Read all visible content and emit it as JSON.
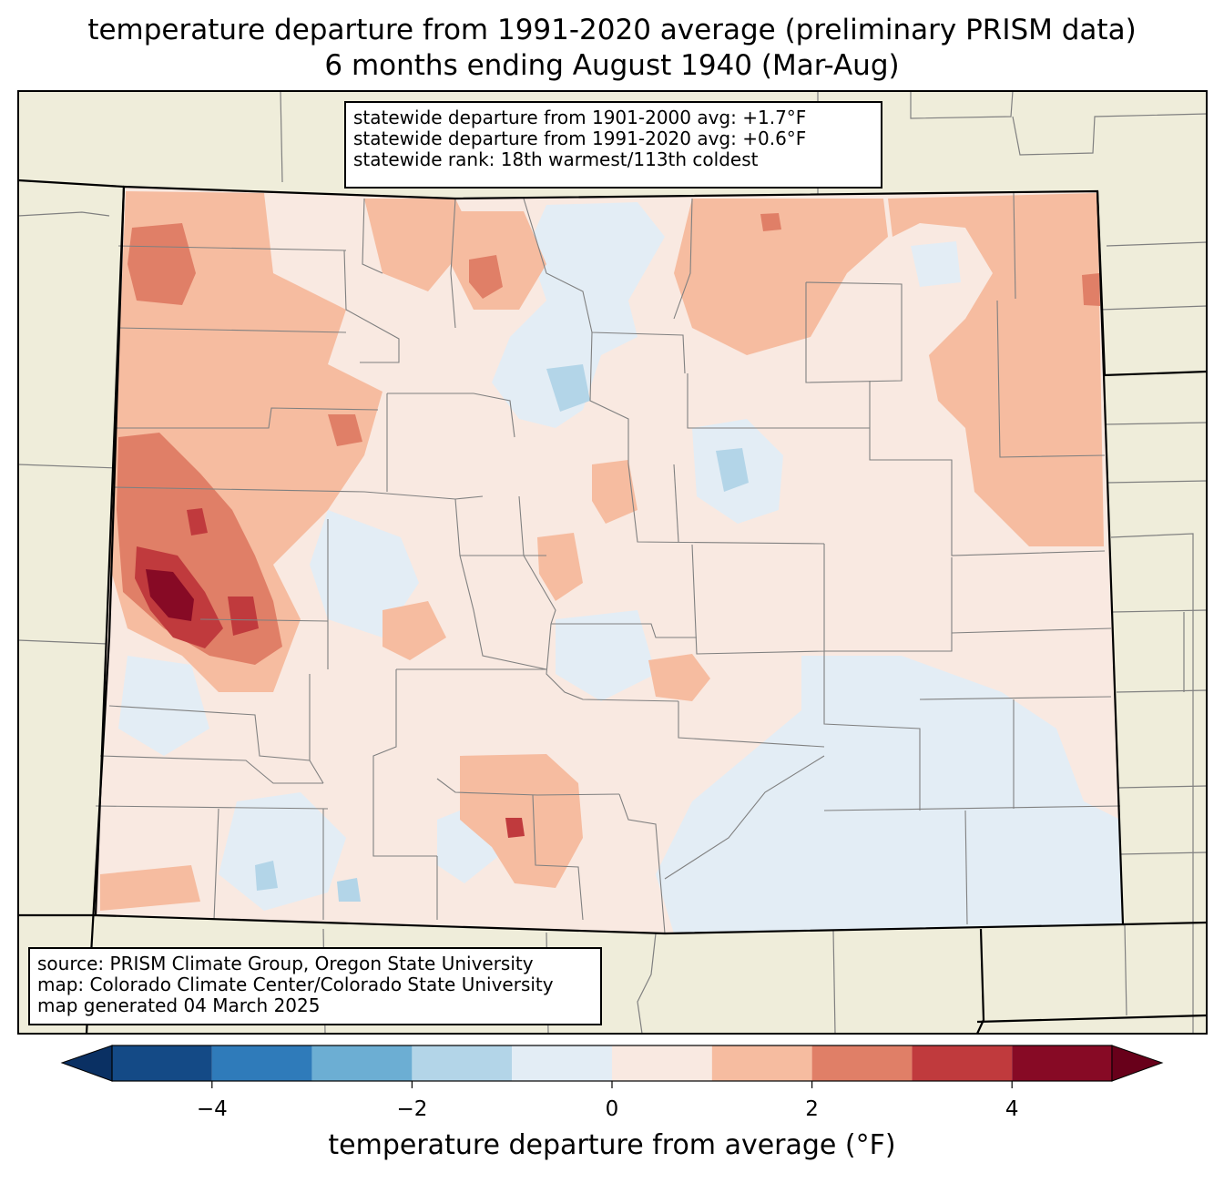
{
  "title": {
    "line1": "temperature departure from 1991-2020 average (preliminary PRISM data)",
    "line2": "6 months ending August 1940 (Mar-Aug)"
  },
  "stats": {
    "line1": "statewide departure from 1901-2000 avg: +1.7°F",
    "line2": "statewide departure from 1991-2020 avg: +0.6°F",
    "line3": "statewide rank: 18th warmest/113th coldest"
  },
  "credits": {
    "line1": "source: PRISM Climate Group, Oregon State University",
    "line2": "map: Colorado Climate Center/Colorado State University",
    "line3": "map generated 04 March 2025"
  },
  "colorbar": {
    "label": "temperature departure from average (°F)",
    "ticks": [
      "−4",
      "−2",
      "0",
      "2",
      "4"
    ],
    "bins": [
      {
        "from": -5,
        "to": -4,
        "color": "#144a86"
      },
      {
        "from": -4,
        "to": -3,
        "color": "#2f7bba"
      },
      {
        "from": -3,
        "to": -2,
        "color": "#6caed3"
      },
      {
        "from": -2,
        "to": -1,
        "color": "#b3d5e8"
      },
      {
        "from": -1,
        "to": 0,
        "color": "#e3edf5"
      },
      {
        "from": 0,
        "to": 1,
        "color": "#f9e9e1"
      },
      {
        "from": 1,
        "to": 2,
        "color": "#f6bca0"
      },
      {
        "from": 2,
        "to": 3,
        "color": "#e07f67"
      },
      {
        "from": 3,
        "to": 4,
        "color": "#c03a3d"
      },
      {
        "from": 4,
        "to": 5,
        "color": "#870a25"
      }
    ],
    "under_color": "#0a3063",
    "over_color": "#68001a"
  },
  "colors": {
    "land": "#efedda",
    "state_border": "#000000",
    "county_line": "#808080"
  }
}
